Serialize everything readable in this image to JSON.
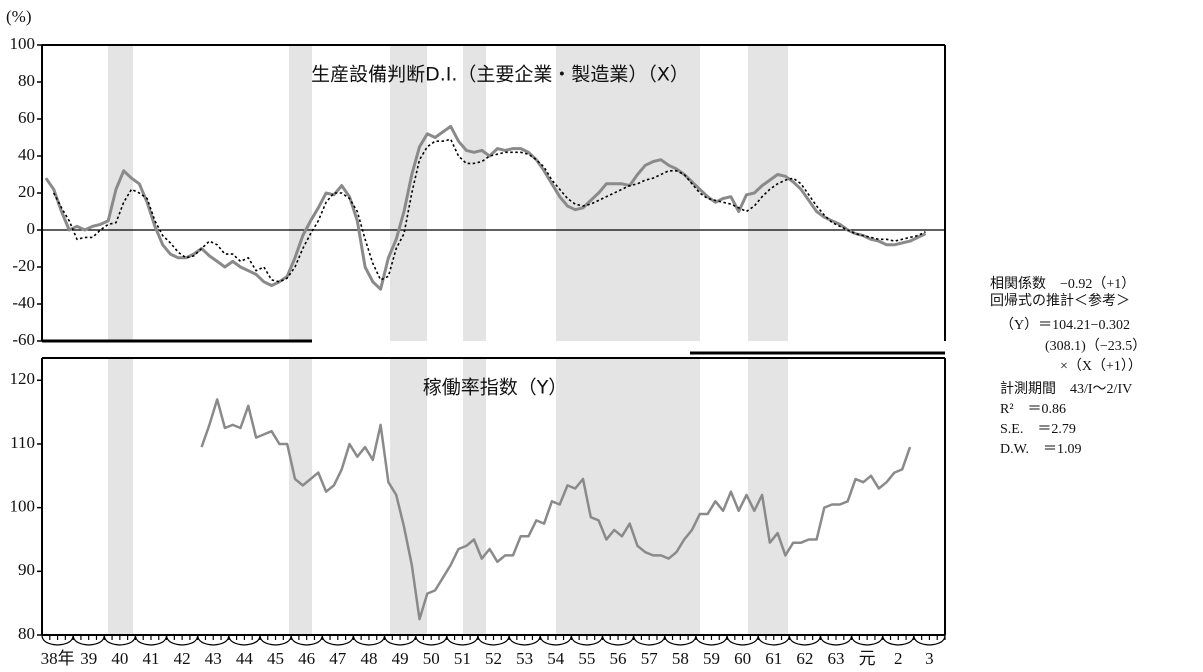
{
  "chart_data": {
    "type": "line",
    "unit_label": "(%)",
    "categories": [
      null,
      "38年",
      null,
      null,
      null,
      "39",
      null,
      null,
      null,
      "40",
      null,
      null,
      null,
      "41",
      null,
      null,
      null,
      "42",
      null,
      null,
      null,
      "43",
      null,
      null,
      null,
      "44",
      null,
      null,
      null,
      "45",
      null,
      null,
      null,
      "46",
      null,
      null,
      null,
      "47",
      null,
      null,
      null,
      "48",
      null,
      null,
      null,
      "49",
      null,
      null,
      null,
      "50",
      null,
      null,
      null,
      "51",
      null,
      null,
      null,
      "52",
      null,
      null,
      null,
      "53",
      null,
      null,
      null,
      "54",
      null,
      null,
      null,
      "55",
      null,
      null,
      null,
      "56",
      null,
      null,
      null,
      "57",
      null,
      null,
      null,
      "58",
      null,
      null,
      null,
      "59",
      null,
      null,
      null,
      "60",
      null,
      null,
      null,
      "61",
      null,
      null,
      null,
      "62",
      null,
      null,
      null,
      "63",
      null,
      null,
      null,
      "元",
      null,
      null,
      null,
      "2",
      null,
      null,
      null,
      "3",
      null,
      null
    ],
    "panels": [
      {
        "title": "生産設備判断D.I.（主要企業・製造業）（X）",
        "ylim": [
          -60,
          100
        ],
        "yticks": [
          100,
          80,
          60,
          40,
          20,
          0,
          -20,
          -40,
          -60
        ],
        "zero_line": true,
        "series": [
          {
            "color": "#8a8a8a",
            "dash": false,
            "width": 3,
            "values": [
              28,
              22,
              10,
              0,
              2,
              0,
              2,
              3,
              5,
              22,
              32,
              28,
              25,
              15,
              2,
              -8,
              -13,
              -15,
              -15,
              -13,
              -10,
              -14,
              -17,
              -20,
              -17,
              -20,
              -22,
              -24,
              -28,
              -30,
              -28,
              -25,
              -15,
              -3,
              5,
              12,
              20,
              19,
              24,
              18,
              5,
              -20,
              -28,
              -32,
              -15,
              -5,
              10,
              30,
              45,
              52,
              50,
              53,
              56,
              48,
              43,
              42,
              43,
              40,
              44,
              43,
              44,
              44,
              42,
              38,
              32,
              25,
              18,
              13,
              11,
              12,
              16,
              20,
              25,
              25,
              25,
              24,
              30,
              35,
              37,
              38,
              35,
              33,
              30,
              26,
              22,
              18,
              15,
              17,
              18,
              10,
              19,
              20,
              24,
              27,
              30,
              29,
              26,
              22,
              16,
              10,
              7,
              5,
              3,
              0,
              -2,
              -3,
              -5,
              -6,
              -8,
              -8,
              -7,
              -6,
              -4,
              -2,
              null,
              null
            ]
          },
          {
            "color": "#000000",
            "dash": true,
            "width": 1.6,
            "values": [
              null,
              20,
              12,
              5,
              -5,
              -4,
              -4,
              0,
              3,
              4,
              15,
              22,
              20,
              17,
              5,
              -3,
              -7,
              -12,
              -15,
              -14,
              -10,
              -6,
              -8,
              -13,
              -13,
              -17,
              -15,
              -22,
              -20,
              -27,
              -28,
              -26,
              -20,
              -10,
              -2,
              5,
              15,
              20,
              20,
              17,
              10,
              -5,
              -18,
              -27,
              -25,
              -10,
              -2,
              20,
              38,
              45,
              48,
              48,
              49,
              40,
              36,
              36,
              37,
              40,
              41,
              42,
              42,
              42,
              41,
              38,
              34,
              27,
              22,
              17,
              14,
              13,
              14,
              16,
              18,
              20,
              22,
              24,
              25,
              27,
              28,
              30,
              32,
              32,
              30,
              25,
              20,
              17,
              16,
              15,
              14,
              12,
              10,
              13,
              18,
              22,
              25,
              27,
              28,
              25,
              19,
              13,
              8,
              4,
              2,
              0,
              -2,
              -3,
              -4,
              -5,
              -5,
              -6,
              -5,
              -4,
              -3,
              -1,
              null,
              null
            ]
          }
        ]
      },
      {
        "title": "稼働率指数（Y）",
        "ylim": [
          80,
          123.5
        ],
        "yticks": [
          120,
          110,
          100,
          90,
          80
        ],
        "series": [
          {
            "color": "#8a8a8a",
            "dash": false,
            "width": 2.5,
            "values": [
              null,
              null,
              null,
              null,
              null,
              null,
              null,
              null,
              null,
              null,
              null,
              null,
              null,
              null,
              null,
              null,
              null,
              null,
              null,
              null,
              109.5,
              113,
              117,
              112.5,
              113,
              112.5,
              116,
              111,
              111.5,
              112,
              110,
              110,
              104.5,
              103.5,
              104.5,
              105.5,
              102.5,
              103.5,
              106,
              110,
              108,
              109.5,
              107.5,
              113,
              104,
              102,
              97,
              91,
              82.5,
              86.5,
              87,
              89,
              91,
              93.5,
              94,
              95,
              92,
              93.5,
              91.5,
              92.5,
              92.5,
              95.5,
              95.5,
              98,
              97.5,
              101,
              100.5,
              103.5,
              103,
              104.5,
              98.5,
              98,
              95,
              96.5,
              95.5,
              97.5,
              94,
              93,
              92.5,
              92.5,
              92,
              93,
              95,
              96.5,
              99,
              99,
              101,
              99.5,
              102.5,
              99.5,
              102,
              99.5,
              102,
              94.5,
              96,
              92.5,
              94.5,
              94.5,
              95,
              95,
              100,
              100.5,
              100.5,
              101,
              104.5,
              104,
              105,
              103,
              104,
              105.5,
              106,
              109.5,
              null,
              null,
              null,
              null
            ]
          }
        ]
      }
    ],
    "annotations": [
      "相関係数　−0.92（+1）",
      "回帰式の推計＜参考＞",
      "（Y）＝104.21−0.302",
      "(308.1)（−23.5）",
      "×（X（+1））",
      "計測期間　43/I〜2/IV",
      "R²　＝0.86",
      "S.E.　＝2.79",
      "D.W.　＝1.09"
    ]
  }
}
